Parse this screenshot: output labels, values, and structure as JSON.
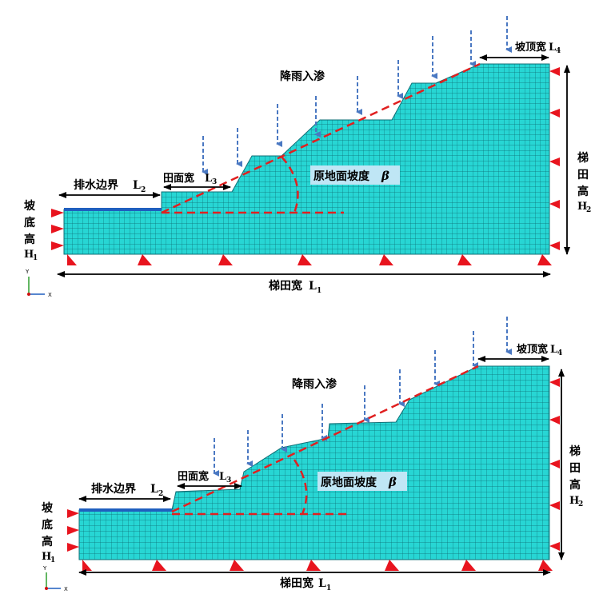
{
  "panels": [
    {
      "id": "top",
      "labels": {
        "rain": "降雨入渗",
        "crest_width": "坡顶宽",
        "crest_width_sym": "L",
        "crest_width_sub": "4",
        "terrace_width": "梯田宽",
        "terrace_width_sym": "L",
        "terrace_width_sub": "1",
        "drain_boundary": "排水边界",
        "drain_boundary_sym": "L",
        "drain_boundary_sub": "2",
        "field_width": "田面宽",
        "field_width_sym": "L",
        "field_width_sub": "3",
        "slope_angle": "原地面坡度",
        "slope_angle_sym": "β",
        "terrace_height_1": "梯",
        "terrace_height_2": "田",
        "terrace_height_3": "高",
        "terrace_height_sym": "H",
        "terrace_height_sub": "2",
        "base_height_1": "坡",
        "base_height_2": "底",
        "base_height_3": "高",
        "base_height_sym": "H",
        "base_height_sub": "1",
        "axis_y": "Y",
        "axis_x": "X"
      }
    },
    {
      "id": "bottom",
      "labels": {
        "rain": "降雨入渗",
        "crest_width": "坡顶宽",
        "crest_width_sym": "L",
        "crest_width_sub": "4",
        "terrace_width": "梯田宽",
        "terrace_width_sym": "L",
        "terrace_width_sub": "1",
        "drain_boundary": "排水边界",
        "drain_boundary_sym": "L",
        "drain_boundary_sub": "2",
        "field_width": "田面宽",
        "field_width_sym": "L",
        "field_width_sub": "3",
        "slope_angle": "原地面坡度",
        "slope_angle_sym": "β",
        "terrace_height_1": "梯",
        "terrace_height_2": "田",
        "terrace_height_3": "高",
        "terrace_height_sym": "H",
        "terrace_height_sub": "2",
        "base_height_1": "坡",
        "base_height_2": "底",
        "base_height_3": "高",
        "base_height_sym": "H",
        "base_height_sub": "1",
        "axis_y": "Y",
        "axis_x": "X"
      }
    }
  ],
  "colors": {
    "mesh_fill": "#27d6d4",
    "mesh_line": "#0e6f76",
    "drain_edge": "#1f5fbf",
    "rain_arrow": "#4a78c2",
    "slope_line": "#e02020",
    "support": "#e8141e",
    "beta_box": "#bfe6f5"
  }
}
